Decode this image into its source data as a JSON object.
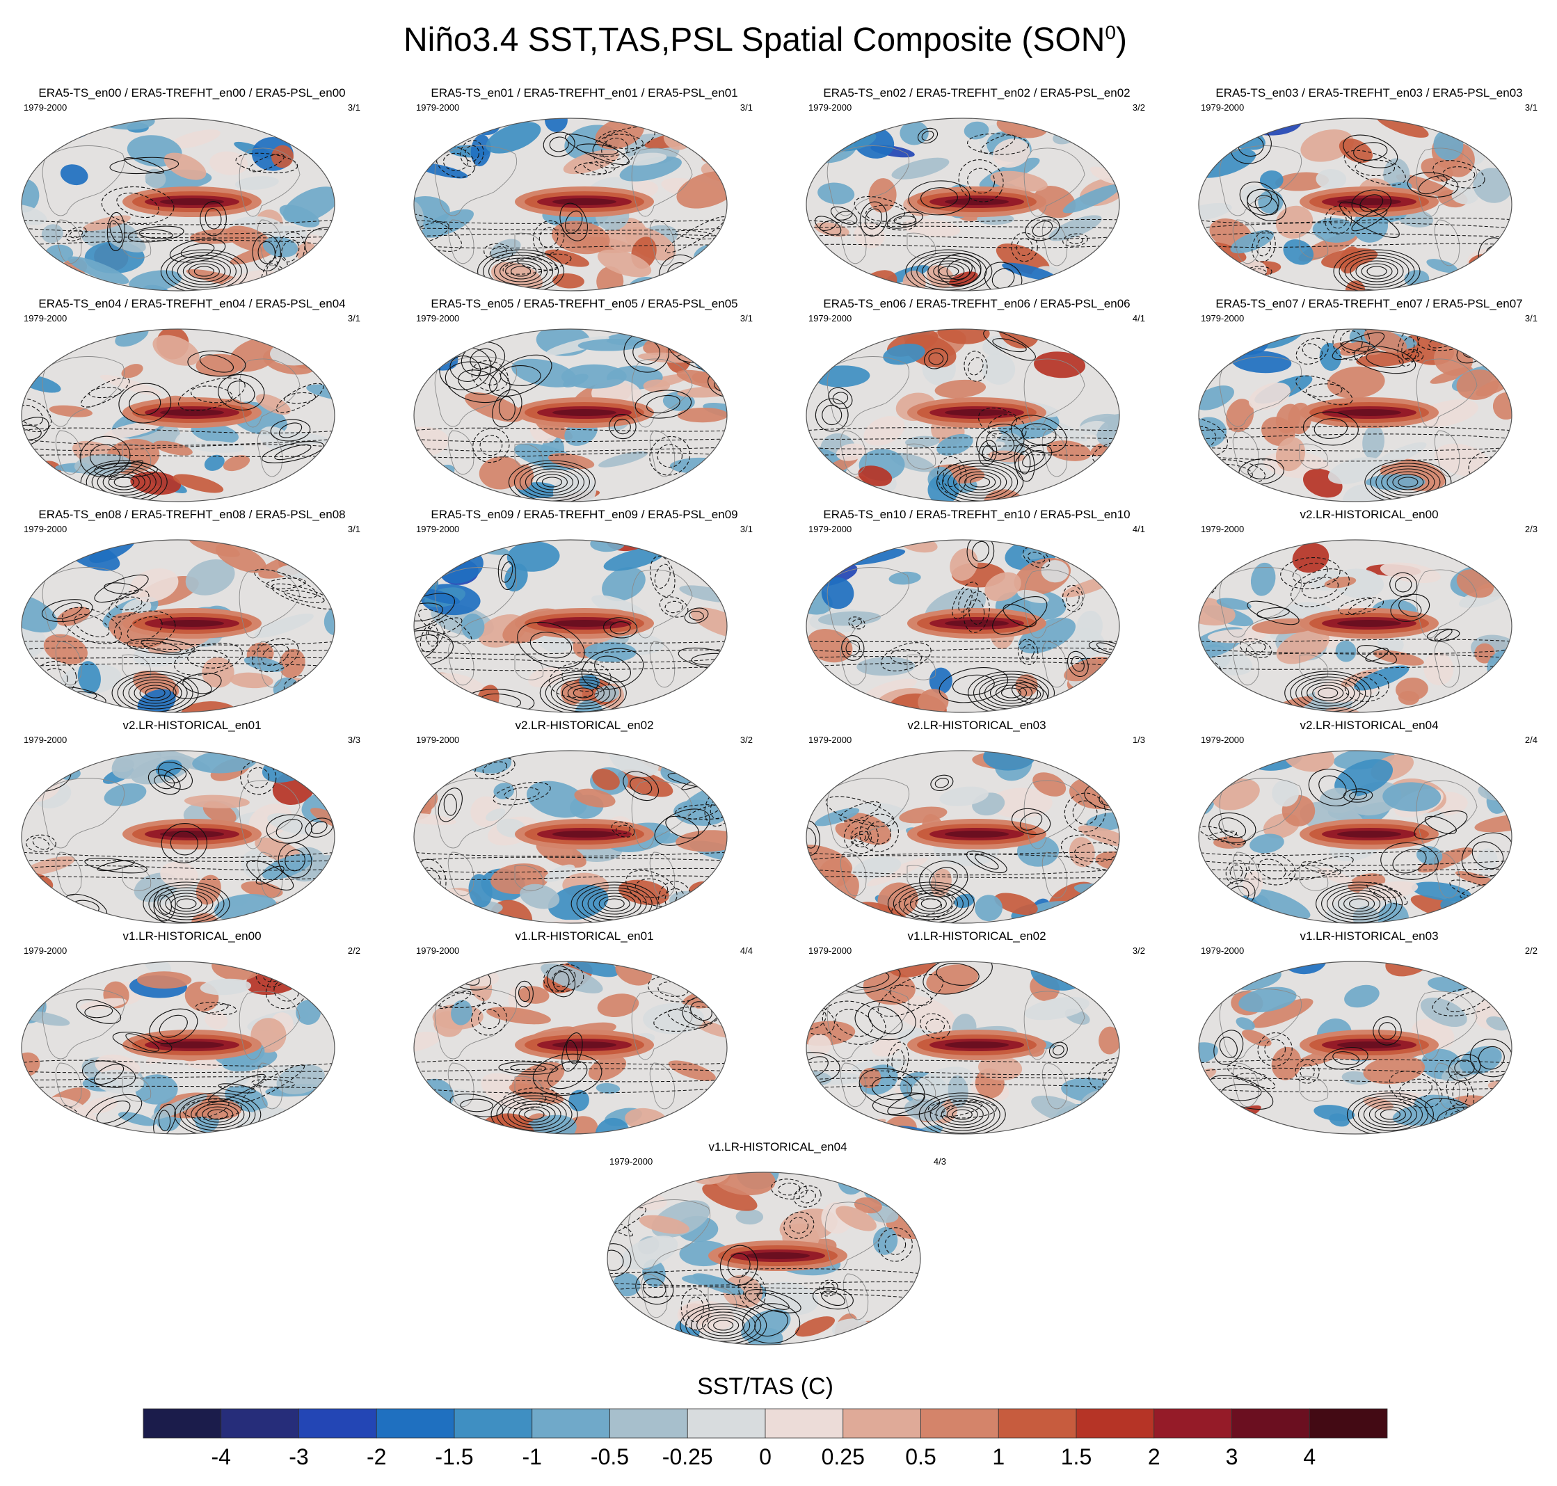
{
  "title": "Niño3.4 SST,TAS,PSL Spatial Composite (SON",
  "title_sup": "0",
  "title_end": ")",
  "period": "1979-2000",
  "colors": {
    "ocean_neutral": "#e3e1e0",
    "land_neutral": "#eeeae8",
    "contour": "#111111",
    "coast": "#8a8a8a",
    "border": "#555555"
  },
  "panels": [
    {
      "title": "ERA5-TS_en00 / ERA5-TREFHT_en00 / ERA5-PSL_en00",
      "count": "3/1"
    },
    {
      "title": "ERA5-TS_en01 / ERA5-TREFHT_en01 / ERA5-PSL_en01",
      "count": "3/1"
    },
    {
      "title": "ERA5-TS_en02 / ERA5-TREFHT_en02 / ERA5-PSL_en02",
      "count": "3/2"
    },
    {
      "title": "ERA5-TS_en03 / ERA5-TREFHT_en03 / ERA5-PSL_en03",
      "count": "3/1"
    },
    {
      "title": "ERA5-TS_en04 / ERA5-TREFHT_en04 / ERA5-PSL_en04",
      "count": "3/1"
    },
    {
      "title": "ERA5-TS_en05 / ERA5-TREFHT_en05 / ERA5-PSL_en05",
      "count": "3/1"
    },
    {
      "title": "ERA5-TS_en06 / ERA5-TREFHT_en06 / ERA5-PSL_en06",
      "count": "4/1"
    },
    {
      "title": "ERA5-TS_en07 / ERA5-TREFHT_en07 / ERA5-PSL_en07",
      "count": "3/1"
    },
    {
      "title": "ERA5-TS_en08 / ERA5-TREFHT_en08 / ERA5-PSL_en08",
      "count": "3/1"
    },
    {
      "title": "ERA5-TS_en09 / ERA5-TREFHT_en09 / ERA5-PSL_en09",
      "count": "3/1"
    },
    {
      "title": "ERA5-TS_en10 / ERA5-TREFHT_en10 / ERA5-PSL_en10",
      "count": "4/1"
    },
    {
      "title": "v2.LR-HISTORICAL_en00",
      "count": "2/3"
    },
    {
      "title": "v2.LR-HISTORICAL_en01",
      "count": "3/3"
    },
    {
      "title": "v2.LR-HISTORICAL_en02",
      "count": "3/2"
    },
    {
      "title": "v2.LR-HISTORICAL_en03",
      "count": "1/3"
    },
    {
      "title": "v2.LR-HISTORICAL_en04",
      "count": "2/4"
    },
    {
      "title": "v1.LR-HISTORICAL_en00",
      "count": "2/2"
    },
    {
      "title": "v1.LR-HISTORICAL_en01",
      "count": "4/4"
    },
    {
      "title": "v1.LR-HISTORICAL_en02",
      "count": "3/2"
    },
    {
      "title": "v1.LR-HISTORICAL_en03",
      "count": "2/2"
    },
    {
      "title": "v1.LR-HISTORICAL_en04",
      "count": "4/3"
    }
  ],
  "chart_data": {
    "type": "heatmap",
    "projection": "robinson",
    "variables": [
      "SST/TAS (shading)",
      "PSL (contours)"
    ],
    "colorbar": {
      "title": "SST/TAS (C)",
      "levels": [
        -4,
        -3,
        -2,
        -1.5,
        -1,
        -0.5,
        -0.25,
        0,
        0.25,
        0.5,
        1,
        1.5,
        2,
        3,
        4
      ],
      "level_labels": [
        "-4",
        "-3",
        "-2",
        "-1.5",
        "-1",
        "-0.5",
        "-0.25",
        "0",
        "0.25",
        "0.5",
        "1",
        "1.5",
        "2",
        "3",
        "4"
      ],
      "colors": [
        "#1b1c4b",
        "#262d7a",
        "#2346b5",
        "#1f70c0",
        "#3f8fc2",
        "#70a9c9",
        "#a7bfcc",
        "#d8dcde",
        "#ecdcd8",
        "#dfaa98",
        "#d4846a",
        "#c75c3e",
        "#b63426",
        "#951b28",
        "#6b0f20",
        "#430a14"
      ]
    }
  }
}
